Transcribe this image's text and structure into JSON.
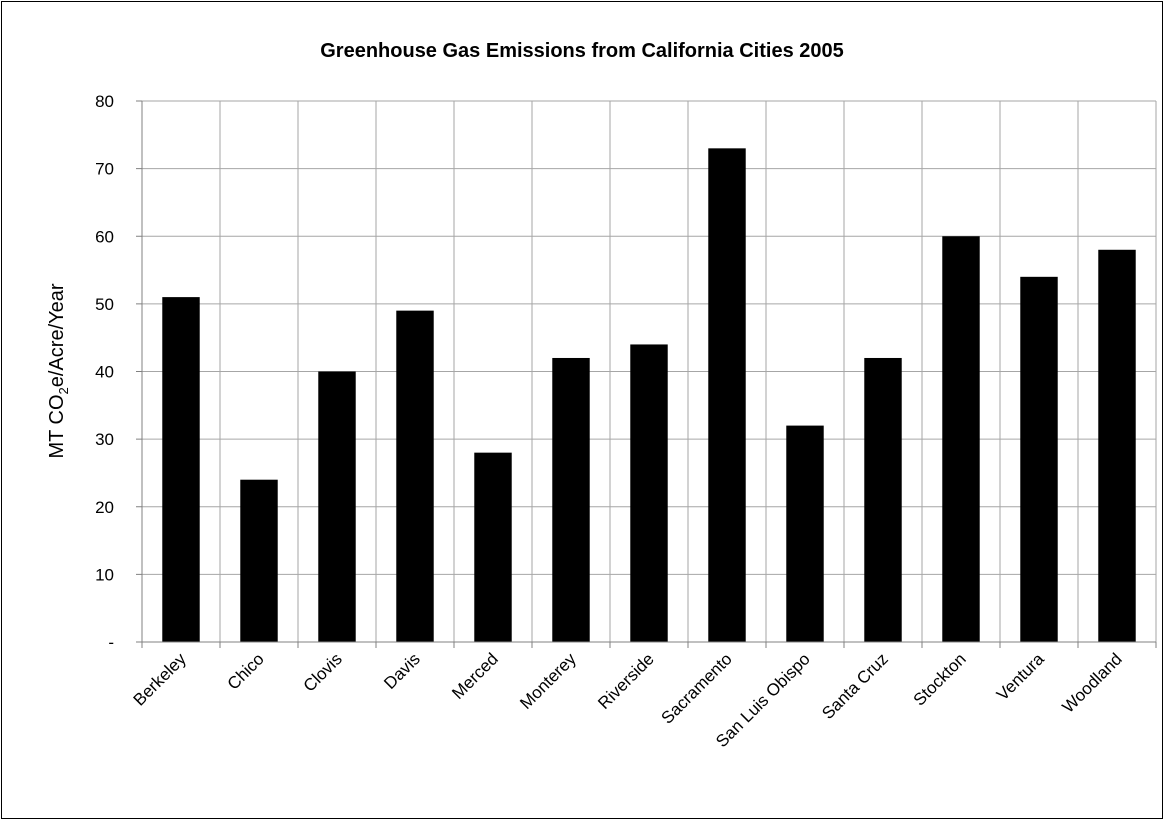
{
  "chart_data": {
    "type": "bar",
    "title": "Greenhouse Gas Emissions from California Cities 2005",
    "ylabel": {
      "main": "MT CO",
      "subscript": "2",
      "suffix": "e/Acre/Year"
    },
    "xlabel": "",
    "ylim": [
      0,
      80
    ],
    "yticks": [
      0,
      10,
      20,
      30,
      40,
      50,
      60,
      70,
      80
    ],
    "ytick_labels": [
      "-",
      "10",
      "20",
      "30",
      "40",
      "50",
      "60",
      "70",
      "80"
    ],
    "grid": true,
    "bar_color": "#000000",
    "categories": [
      "Berkeley",
      "Chico",
      "Clovis",
      "Davis",
      "Merced",
      "Monterey",
      "Riverside",
      "Sacramento",
      "San Luis Obispo",
      "Santa Cruz",
      "Stockton",
      "Ventura",
      "Woodland"
    ],
    "values": [
      51,
      24,
      40,
      49,
      28,
      42,
      44,
      73,
      32,
      42,
      60,
      54,
      58
    ]
  }
}
